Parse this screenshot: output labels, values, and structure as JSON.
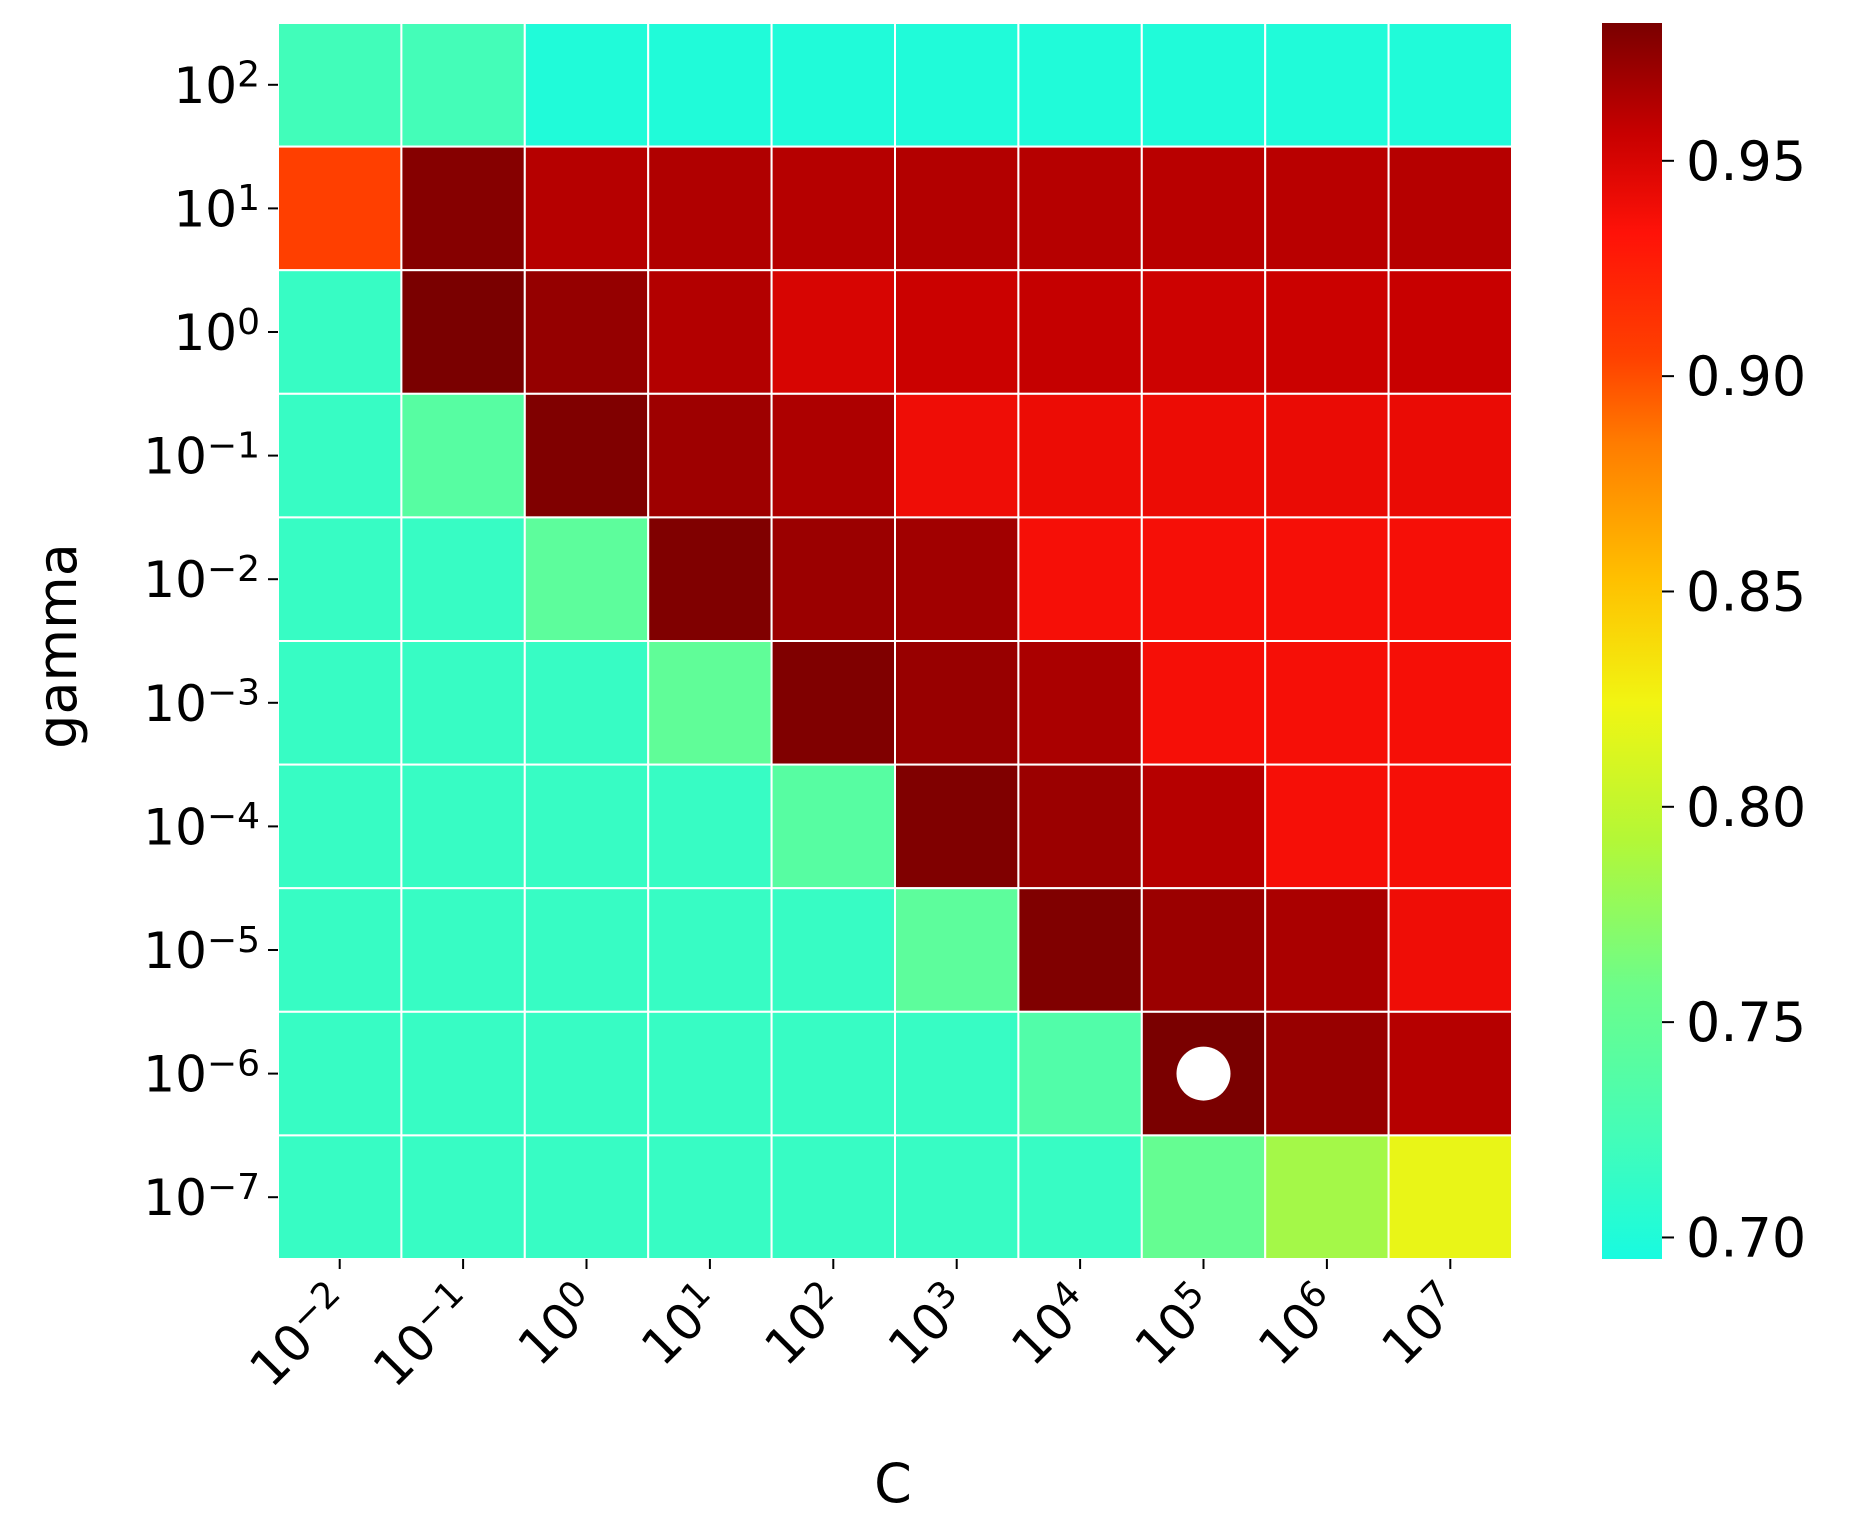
{
  "chart_data": {
    "type": "heatmap",
    "xlabel": "C",
    "ylabel": "gamma",
    "x_exponents": [
      -2,
      -1,
      0,
      1,
      2,
      3,
      4,
      5,
      6,
      7
    ],
    "y_exponents": [
      2,
      1,
      0,
      -1,
      -2,
      -3,
      -4,
      -5,
      -6,
      -7
    ],
    "x_tick_labels": [
      "10^-2",
      "10^-1",
      "10^0",
      "10^1",
      "10^2",
      "10^3",
      "10^4",
      "10^5",
      "10^6",
      "10^7"
    ],
    "y_tick_labels": [
      "10^2",
      "10^1",
      "10^0",
      "10^-1",
      "10^-2",
      "10^-3",
      "10^-4",
      "10^-5",
      "10^-6",
      "10^-7"
    ],
    "values": [
      [
        0.722,
        0.724,
        0.7,
        0.7,
        0.7,
        0.7,
        0.7,
        0.7,
        0.7,
        0.7
      ],
      [
        0.905,
        0.978,
        0.962,
        0.964,
        0.962,
        0.963,
        0.962,
        0.961,
        0.961,
        0.962
      ],
      [
        0.715,
        0.982,
        0.973,
        0.963,
        0.95,
        0.955,
        0.957,
        0.954,
        0.955,
        0.956
      ],
      [
        0.715,
        0.74,
        0.98,
        0.97,
        0.965,
        0.94,
        0.941,
        0.941,
        0.942,
        0.942
      ],
      [
        0.715,
        0.715,
        0.745,
        0.98,
        0.971,
        0.969,
        0.937,
        0.937,
        0.937,
        0.937
      ],
      [
        0.715,
        0.715,
        0.715,
        0.748,
        0.98,
        0.972,
        0.966,
        0.937,
        0.937,
        0.937
      ],
      [
        0.715,
        0.715,
        0.715,
        0.715,
        0.74,
        0.98,
        0.971,
        0.962,
        0.937,
        0.937
      ],
      [
        0.715,
        0.715,
        0.715,
        0.715,
        0.715,
        0.745,
        0.98,
        0.971,
        0.966,
        0.94
      ],
      [
        0.715,
        0.715,
        0.715,
        0.715,
        0.715,
        0.715,
        0.735,
        0.982,
        0.972,
        0.962
      ],
      [
        0.715,
        0.715,
        0.715,
        0.715,
        0.715,
        0.715,
        0.715,
        0.752,
        0.785,
        0.82
      ]
    ],
    "vmin": 0.695,
    "vmax": 0.982,
    "colorbar_ticks": [
      0.7,
      0.75,
      0.8,
      0.85,
      0.9,
      0.95
    ],
    "colorbar_tick_labels": [
      "0.70",
      "0.75",
      "0.80",
      "0.85",
      "0.90",
      "0.95"
    ],
    "colormap": [
      [
        0.0,
        "#18fbe0"
      ],
      [
        0.1,
        "#44fdb8"
      ],
      [
        0.22,
        "#6cfd8a"
      ],
      [
        0.34,
        "#b4f736"
      ],
      [
        0.45,
        "#f1f512"
      ],
      [
        0.55,
        "#ffc000"
      ],
      [
        0.66,
        "#ff7c00"
      ],
      [
        0.73,
        "#ff4000"
      ],
      [
        0.83,
        "#ff1208"
      ],
      [
        0.91,
        "#c80000"
      ],
      [
        1.0,
        "#7a0000"
      ]
    ],
    "cell_border_color": "#ffffff",
    "marker": {
      "row": 8,
      "col": 7,
      "color": "#ffffff"
    },
    "grid": false,
    "legend": "colorbar-right"
  }
}
